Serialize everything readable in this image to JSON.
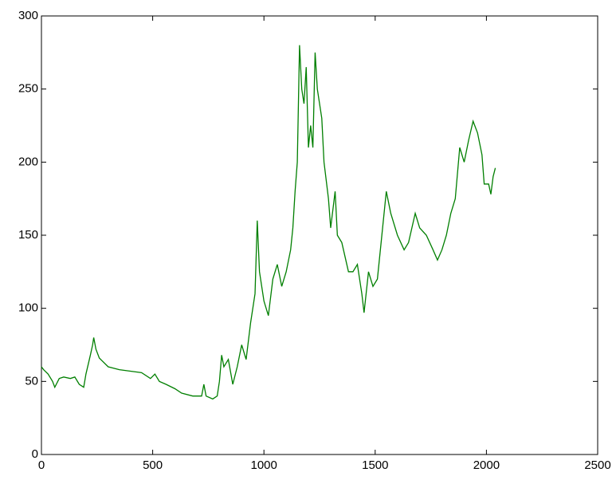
{
  "chart_data": {
    "type": "line",
    "x": [
      0,
      10,
      30,
      50,
      60,
      80,
      100,
      130,
      150,
      170,
      190,
      200,
      220,
      230,
      235,
      245,
      260,
      300,
      350,
      400,
      450,
      490,
      510,
      530,
      560,
      600,
      630,
      680,
      720,
      730,
      740,
      770,
      790,
      800,
      810,
      820,
      840,
      860,
      880,
      900,
      920,
      940,
      960,
      970,
      980,
      1000,
      1020,
      1040,
      1060,
      1080,
      1100,
      1120,
      1130,
      1140,
      1150,
      1160,
      1170,
      1180,
      1190,
      1200,
      1210,
      1220,
      1230,
      1240,
      1260,
      1270,
      1290,
      1300,
      1320,
      1330,
      1350,
      1380,
      1400,
      1420,
      1440,
      1450,
      1470,
      1490,
      1510,
      1530,
      1550,
      1570,
      1600,
      1630,
      1650,
      1680,
      1700,
      1730,
      1760,
      1780,
      1800,
      1820,
      1840,
      1860,
      1880,
      1900,
      1920,
      1940,
      1960,
      1980,
      1990,
      2010,
      2020,
      2030,
      2040
    ],
    "series": [
      {
        "color": "#007f00",
        "values": [
          60,
          58,
          55,
          50,
          46,
          52,
          53,
          52,
          53,
          48,
          46,
          55,
          68,
          75,
          80,
          72,
          66,
          60,
          58,
          57,
          56,
          52,
          55,
          50,
          48,
          45,
          42,
          40,
          40,
          48,
          40,
          38,
          40,
          50,
          68,
          60,
          65,
          48,
          60,
          75,
          65,
          90,
          110,
          160,
          125,
          105,
          95,
          120,
          130,
          115,
          125,
          140,
          155,
          180,
          200,
          280,
          250,
          240,
          265,
          210,
          225,
          210,
          275,
          250,
          230,
          200,
          175,
          155,
          180,
          150,
          145,
          125,
          125,
          130,
          110,
          97,
          125,
          115,
          120,
          150,
          180,
          165,
          150,
          140,
          145,
          165,
          155,
          150,
          140,
          133,
          140,
          150,
          165,
          175,
          210,
          200,
          215,
          228,
          220,
          205,
          185,
          185,
          178,
          190,
          196
        ]
      }
    ],
    "xlim": [
      0,
      2500
    ],
    "xticks": [
      0,
      500,
      1000,
      1500,
      2000,
      2500
    ],
    "ylim": [
      0,
      300
    ],
    "yticks": [
      0,
      50,
      100,
      150,
      200,
      250,
      300
    ]
  }
}
